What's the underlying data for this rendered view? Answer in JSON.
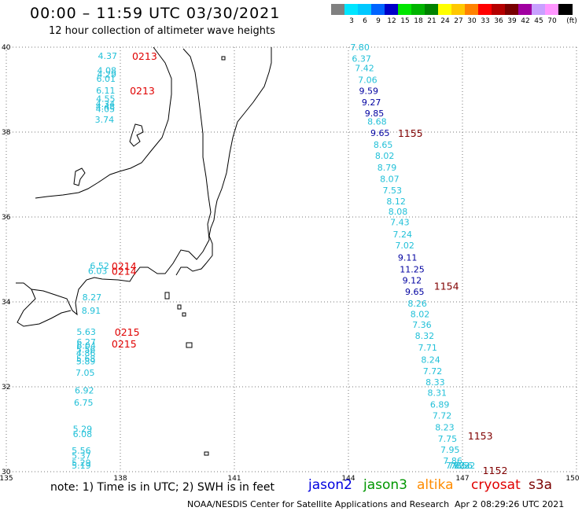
{
  "header": {
    "title": "00:00 – 11:59 UTC 03/30/2021",
    "subtitle": "12 hour collection of altimeter wave heights"
  },
  "legend": {
    "unit": "(ft)",
    "items": [
      {
        "label": "",
        "color": "#808080"
      },
      {
        "label": "3",
        "color": "#00e5ff"
      },
      {
        "label": "6",
        "color": "#00c8ff"
      },
      {
        "label": "9",
        "color": "#0064ff"
      },
      {
        "label": "12",
        "color": "#0000c8"
      },
      {
        "label": "15",
        "color": "#00e600"
      },
      {
        "label": "18",
        "color": "#00b400"
      },
      {
        "label": "21",
        "color": "#008200"
      },
      {
        "label": "24",
        "color": "#ffff00"
      },
      {
        "label": "27",
        "color": "#ffc800"
      },
      {
        "label": "30",
        "color": "#ff8200"
      },
      {
        "label": "33",
        "color": "#ff0000"
      },
      {
        "label": "36",
        "color": "#b40000"
      },
      {
        "label": "39",
        "color": "#780000"
      },
      {
        "label": "42",
        "color": "#a000a0"
      },
      {
        "label": "45",
        "color": "#c8a0ff"
      },
      {
        "label": "70",
        "color": "#ff96ff"
      },
      {
        "label": "",
        "color": "#000000"
      }
    ]
  },
  "map": {
    "lon_range": [
      135,
      150
    ],
    "lat_range": [
      30,
      40
    ],
    "x_ticks": [
      "135",
      "138",
      "141",
      "144",
      "147",
      "150"
    ],
    "y_ticks": [
      "40",
      "38",
      "36",
      "34",
      "32",
      "30"
    ],
    "colors": {
      "cyan": "#22c0d8",
      "navy": "#0000a0",
      "red": "#e00000",
      "maroon": "#800000",
      "coast": "#000000",
      "grid": "#777777"
    }
  },
  "passes": [
    {
      "label": "0213",
      "lon": 138.31,
      "lat": 39.8,
      "color": "#e00000"
    },
    {
      "label": "0213",
      "lon": 138.25,
      "lat": 38.98,
      "color": "#e00000"
    },
    {
      "label": "0214",
      "lon": 137.77,
      "lat": 34.85,
      "color": "#e00000"
    },
    {
      "label": "0214",
      "lon": 137.77,
      "lat": 34.73,
      "color": "#e00000"
    },
    {
      "label": "0215",
      "lon": 137.85,
      "lat": 33.3,
      "color": "#e00000"
    },
    {
      "label": "0215",
      "lon": 137.77,
      "lat": 33.02,
      "color": "#e00000"
    },
    {
      "label": "1155",
      "lon": 145.3,
      "lat": 37.98,
      "color": "#800000"
    },
    {
      "label": "1154",
      "lon": 146.25,
      "lat": 34.38,
      "color": "#800000"
    },
    {
      "label": "1153",
      "lon": 147.14,
      "lat": 30.85,
      "color": "#800000"
    },
    {
      "label": "1152",
      "lon": 147.53,
      "lat": 30.0,
      "color": "#800000"
    }
  ],
  "waves": [
    {
      "v": "4.37",
      "lon": 137.41,
      "lat": 39.8,
      "c": "cyan"
    },
    {
      "v": "4.08",
      "lon": 137.39,
      "lat": 39.45,
      "c": "cyan"
    },
    {
      "v": "4.29",
      "lon": 137.39,
      "lat": 39.36,
      "c": "cyan"
    },
    {
      "v": "6.01",
      "lon": 137.37,
      "lat": 39.26,
      "c": "cyan"
    },
    {
      "v": "6.11",
      "lon": 137.36,
      "lat": 38.98,
      "c": "cyan"
    },
    {
      "v": "4.55",
      "lon": 137.36,
      "lat": 38.79,
      "c": "cyan"
    },
    {
      "v": "4.34",
      "lon": 137.35,
      "lat": 38.67,
      "c": "cyan"
    },
    {
      "v": "4.48",
      "lon": 137.35,
      "lat": 38.6,
      "c": "cyan"
    },
    {
      "v": "4.05",
      "lon": 137.35,
      "lat": 38.55,
      "c": "cyan"
    },
    {
      "v": "3.74",
      "lon": 137.33,
      "lat": 38.3,
      "c": "cyan"
    },
    {
      "v": "6.52",
      "lon": 137.2,
      "lat": 34.85,
      "c": "cyan"
    },
    {
      "v": "6.03",
      "lon": 137.15,
      "lat": 34.73,
      "c": "cyan"
    },
    {
      "v": "8.27",
      "lon": 137.0,
      "lat": 34.11,
      "c": "cyan"
    },
    {
      "v": "8.91",
      "lon": 136.98,
      "lat": 33.8,
      "c": "cyan"
    },
    {
      "v": "5.63",
      "lon": 136.85,
      "lat": 33.3,
      "c": "cyan"
    },
    {
      "v": "6.27",
      "lon": 136.85,
      "lat": 33.06,
      "c": "cyan"
    },
    {
      "v": "6.04",
      "lon": 136.85,
      "lat": 32.97,
      "c": "cyan"
    },
    {
      "v": "5.56",
      "lon": 136.84,
      "lat": 32.88,
      "c": "cyan"
    },
    {
      "v": "4.86",
      "lon": 136.84,
      "lat": 32.8,
      "c": "cyan"
    },
    {
      "v": "5.68",
      "lon": 136.84,
      "lat": 32.67,
      "c": "cyan"
    },
    {
      "v": "5.89",
      "lon": 136.84,
      "lat": 32.6,
      "c": "cyan"
    },
    {
      "v": "7.05",
      "lon": 136.82,
      "lat": 32.33,
      "c": "cyan"
    },
    {
      "v": "6.92",
      "lon": 136.8,
      "lat": 31.92,
      "c": "cyan"
    },
    {
      "v": "6.75",
      "lon": 136.78,
      "lat": 31.63,
      "c": "cyan"
    },
    {
      "v": "5.29",
      "lon": 136.75,
      "lat": 31.01,
      "c": "cyan"
    },
    {
      "v": "6.08",
      "lon": 136.75,
      "lat": 30.89,
      "c": "cyan"
    },
    {
      "v": "5.56",
      "lon": 136.72,
      "lat": 30.5,
      "c": "cyan"
    },
    {
      "v": "5.37",
      "lon": 136.72,
      "lat": 30.38,
      "c": "cyan"
    },
    {
      "v": "5.29",
      "lon": 136.72,
      "lat": 30.21,
      "c": "cyan"
    },
    {
      "v": "5.19",
      "lon": 136.72,
      "lat": 30.11,
      "c": "cyan"
    },
    {
      "v": "7.80",
      "lon": 144.05,
      "lat": 40.0,
      "c": "cyan"
    },
    {
      "v": "6.37",
      "lon": 144.09,
      "lat": 39.73,
      "c": "cyan"
    },
    {
      "v": "7.42",
      "lon": 144.17,
      "lat": 39.51,
      "c": "cyan"
    },
    {
      "v": "7.06",
      "lon": 144.25,
      "lat": 39.23,
      "c": "cyan"
    },
    {
      "v": "9.59",
      "lon": 144.28,
      "lat": 38.97,
      "c": "navy"
    },
    {
      "v": "9.27",
      "lon": 144.35,
      "lat": 38.7,
      "c": "navy"
    },
    {
      "v": "9.85",
      "lon": 144.43,
      "lat": 38.44,
      "c": "navy"
    },
    {
      "v": "8.68",
      "lon": 144.5,
      "lat": 38.25,
      "c": "cyan"
    },
    {
      "v": "9.65",
      "lon": 144.58,
      "lat": 37.98,
      "c": "navy"
    },
    {
      "v": "8.65",
      "lon": 144.66,
      "lat": 37.7,
      "c": "cyan"
    },
    {
      "v": "8.02",
      "lon": 144.7,
      "lat": 37.44,
      "c": "cyan"
    },
    {
      "v": "8.79",
      "lon": 144.76,
      "lat": 37.17,
      "c": "cyan"
    },
    {
      "v": "8.07",
      "lon": 144.83,
      "lat": 36.9,
      "c": "cyan"
    },
    {
      "v": "7.53",
      "lon": 144.9,
      "lat": 36.63,
      "c": "cyan"
    },
    {
      "v": "8.12",
      "lon": 145.0,
      "lat": 36.37,
      "c": "cyan"
    },
    {
      "v": "8.08",
      "lon": 145.05,
      "lat": 36.13,
      "c": "cyan"
    },
    {
      "v": "7.43",
      "lon": 145.1,
      "lat": 35.88,
      "c": "cyan"
    },
    {
      "v": "7.24",
      "lon": 145.17,
      "lat": 35.59,
      "c": "cyan"
    },
    {
      "v": "7.02",
      "lon": 145.23,
      "lat": 35.33,
      "c": "cyan"
    },
    {
      "v": "9.11",
      "lon": 145.3,
      "lat": 35.05,
      "c": "navy"
    },
    {
      "v": "11.25",
      "lon": 145.35,
      "lat": 34.77,
      "c": "navy"
    },
    {
      "v": "9.12",
      "lon": 145.42,
      "lat": 34.51,
      "c": "navy"
    },
    {
      "v": "9.65",
      "lon": 145.49,
      "lat": 34.24,
      "c": "navy"
    },
    {
      "v": "8.26",
      "lon": 145.56,
      "lat": 33.96,
      "c": "cyan"
    },
    {
      "v": "8.02",
      "lon": 145.63,
      "lat": 33.71,
      "c": "cyan"
    },
    {
      "v": "7.36",
      "lon": 145.68,
      "lat": 33.46,
      "c": "cyan"
    },
    {
      "v": "8.32",
      "lon": 145.75,
      "lat": 33.2,
      "c": "cyan"
    },
    {
      "v": "7.71",
      "lon": 145.83,
      "lat": 32.93,
      "c": "cyan"
    },
    {
      "v": "8.24",
      "lon": 145.91,
      "lat": 32.64,
      "c": "cyan"
    },
    {
      "v": "7.72",
      "lon": 145.96,
      "lat": 32.37,
      "c": "cyan"
    },
    {
      "v": "8.33",
      "lon": 146.03,
      "lat": 32.11,
      "c": "cyan"
    },
    {
      "v": "8.31",
      "lon": 146.08,
      "lat": 31.86,
      "c": "cyan"
    },
    {
      "v": "6.89",
      "lon": 146.15,
      "lat": 31.58,
      "c": "cyan"
    },
    {
      "v": "7.72",
      "lon": 146.21,
      "lat": 31.32,
      "c": "cyan"
    },
    {
      "v": "8.23",
      "lon": 146.28,
      "lat": 31.05,
      "c": "cyan"
    },
    {
      "v": "7.75",
      "lon": 146.35,
      "lat": 30.78,
      "c": "cyan"
    },
    {
      "v": "7.95",
      "lon": 146.42,
      "lat": 30.52,
      "c": "cyan"
    },
    {
      "v": "7.86",
      "lon": 146.49,
      "lat": 30.26,
      "c": "cyan"
    },
    {
      "v": "7.63",
      "lon": 146.56,
      "lat": 30.0,
      "c": "cyan"
    },
    {
      "v": "7.55",
      "lon": 146.62,
      "lat": 29.75,
      "c": "cyan"
    },
    {
      "v": "7.72",
      "lon": 146.69,
      "lat": 29.49,
      "c": "cyan"
    },
    {
      "v": "7.56",
      "lon": 146.76,
      "lat": 29.24,
      "c": "cyan"
    },
    {
      "v": "8.32",
      "lon": 146.83,
      "lat": 28.99,
      "c": "cyan"
    }
  ],
  "footer": {
    "note": "note: 1) Time is in UTC; 2) SWH is in feet",
    "satellites": [
      {
        "name": "jason2",
        "color": "#0000e0"
      },
      {
        "name": "jason3",
        "color": "#009600"
      },
      {
        "name": "altika",
        "color": "#ff8c00"
      },
      {
        "name": "cryosat",
        "color": "#e00000"
      },
      {
        "name": "s3a",
        "color": "#7a0000"
      }
    ],
    "credit": "NOAA/NESDIS Center for Satellite Applications and Research",
    "timestamp": "Apr  2 08:29:26 UTC 2021"
  }
}
